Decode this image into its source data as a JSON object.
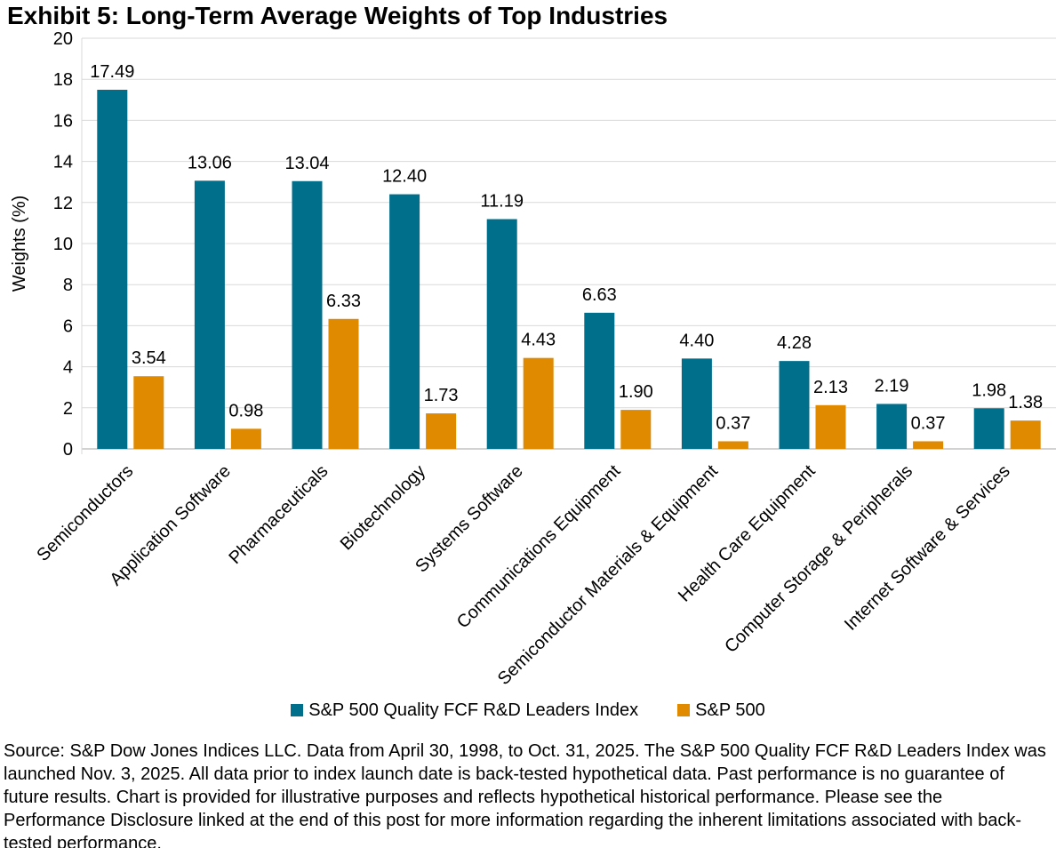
{
  "title": "Exhibit 5: Long-Term Average Weights of Top Industries",
  "chart_data": {
    "type": "bar",
    "categories": [
      "Semiconductors",
      "Application Software",
      "Pharmaceuticals",
      "Biotechnology",
      "Systems Software",
      "Communications Equipment",
      "Semiconductor Materials & Equipment",
      "Health Care Equipment",
      "Computer Storage & Peripherals",
      "Internet Software & Services"
    ],
    "series": [
      {
        "name": "S&P 500 Quality FCF R&D Leaders Index",
        "color": "#006F8C",
        "values": [
          17.49,
          13.06,
          13.04,
          12.4,
          11.19,
          6.63,
          4.4,
          4.28,
          2.19,
          1.98
        ]
      },
      {
        "name": "S&P 500",
        "color": "#E08A00",
        "values": [
          3.54,
          0.98,
          6.33,
          1.73,
          4.43,
          1.9,
          0.37,
          2.13,
          0.37,
          1.38
        ]
      }
    ],
    "xlabel": "",
    "ylabel": "Weights (%)",
    "ylim": [
      0,
      20
    ],
    "ytick_interval": 2,
    "grid": true,
    "gridline_color": "#D9D9D9",
    "axis_line_color": "#A6A6A6",
    "value_label_decimals": 2,
    "value_labels_shown": true,
    "category_label_rotation_deg": 45,
    "legend_position": "bottom"
  },
  "source_note": "Source: S&P Dow Jones Indices LLC. Data from April 30, 1998, to Oct. 31, 2025. The S&P 500 Quality FCF R&D Leaders Index was launched Nov. 3, 2025. All data prior to index launch date is back-tested hypothetical data. Past performance is no guarantee of future results. Chart is provided for illustrative purposes and reflects hypothetical historical performance. Please see the Performance Disclosure linked at the end of this post for more information regarding the inherent limitations associated with back-tested performance."
}
